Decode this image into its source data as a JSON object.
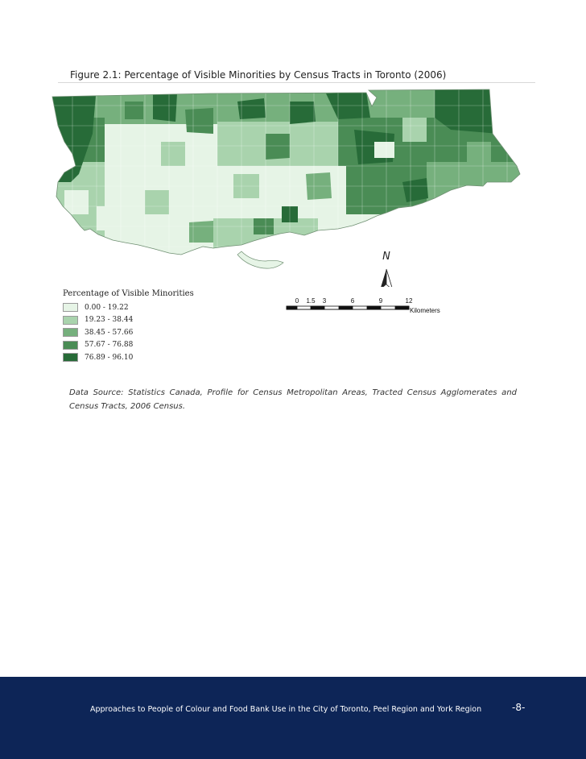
{
  "figure": {
    "title": "Figure 2.1: Percentage of Visible Minorities by Census Tracts in Toronto (2006)"
  },
  "map": {
    "north_label": "N",
    "scale": {
      "ticks": [
        "0",
        "1.5",
        "3",
        "6",
        "9",
        "12"
      ],
      "unit": "Kilometers"
    }
  },
  "legend": {
    "title": "Percentage of Visible Minorities",
    "items": [
      {
        "label": "0.00 - 19.22",
        "color": "#e6f4e6"
      },
      {
        "label": "19.23 - 38.44",
        "color": "#a9d3ad"
      },
      {
        "label": "38.45 - 57.66",
        "color": "#76b07d"
      },
      {
        "label": "57.67 - 76.88",
        "color": "#4a8c55"
      },
      {
        "label": "76.89 - 96.10",
        "color": "#276b38"
      }
    ]
  },
  "source": {
    "text": "Data Source: Statistics Canada, Profile for Census Metropolitan Areas, Tracted Census Agglomerates and Census Tracts, 2006 Census."
  },
  "footer": {
    "text": "Approaches to People of Colour and Food Bank Use in the City of Toronto, Peel Region and York Region",
    "page": "-8-"
  }
}
